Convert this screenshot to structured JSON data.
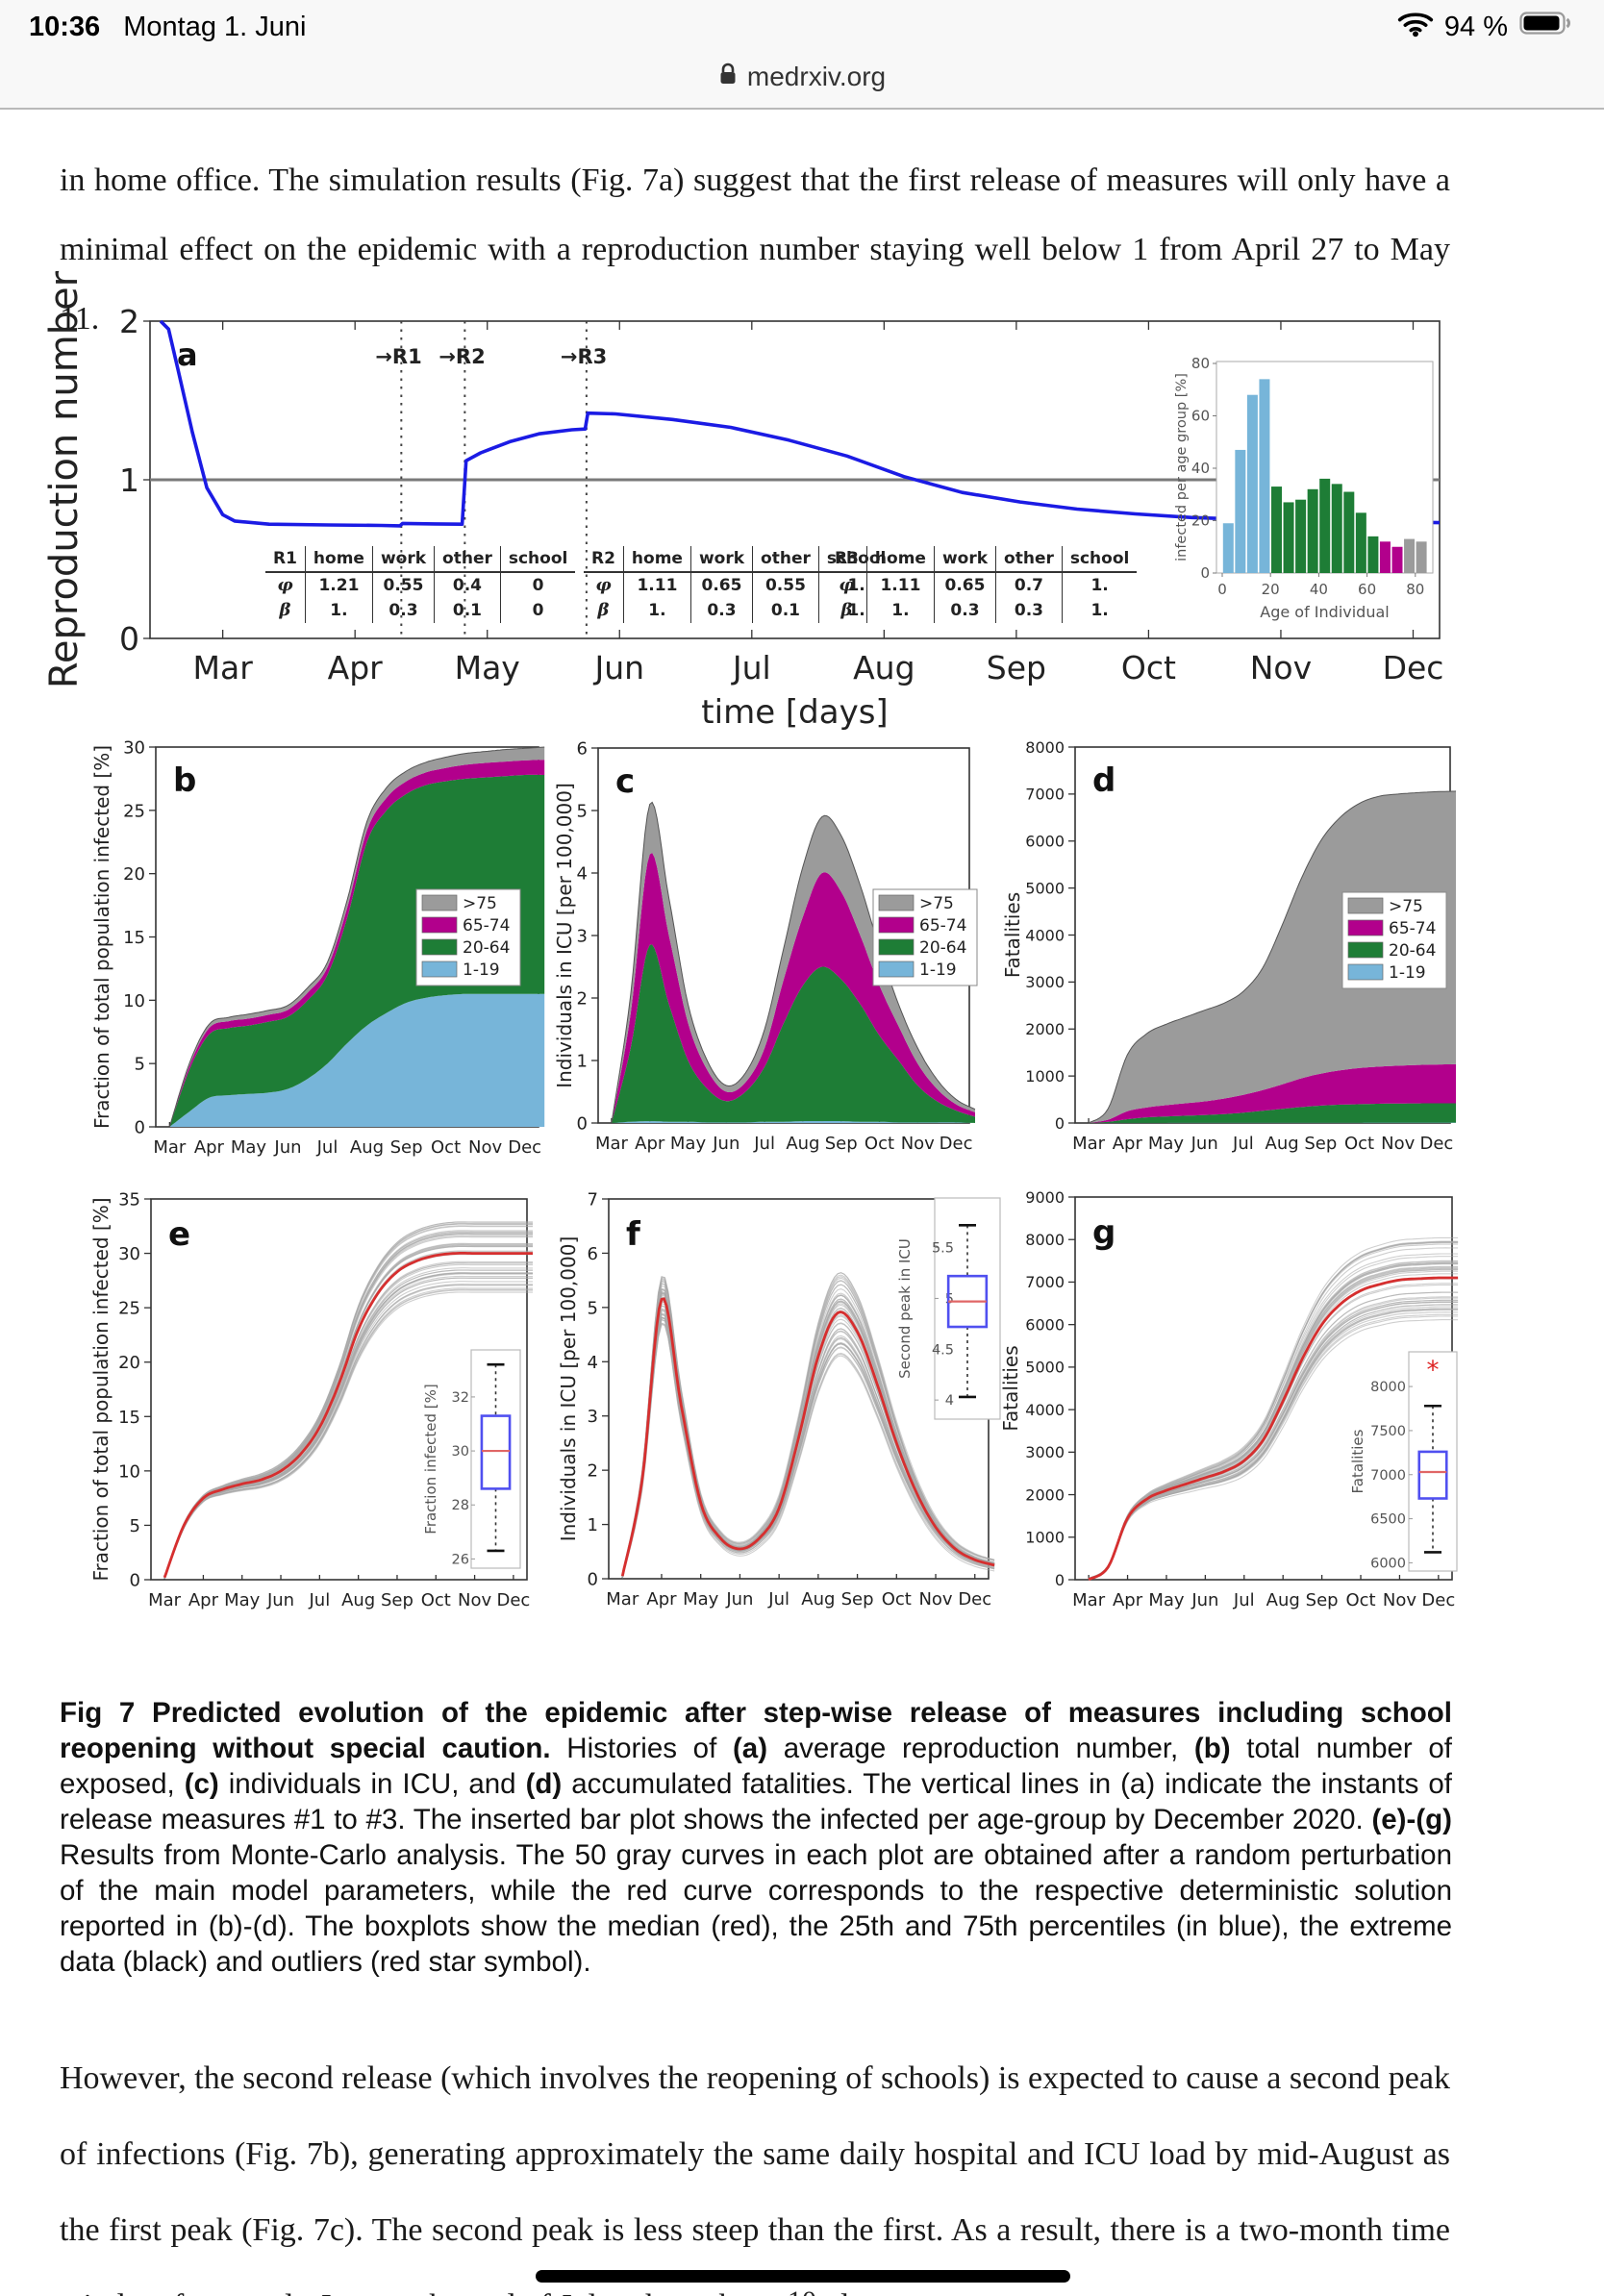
{
  "status_bar": {
    "time": "10:36",
    "date": "Montag 1. Juni",
    "battery_percent": "94 %"
  },
  "url_bar": {
    "domain": "medrxiv.org"
  },
  "paragraph_top": "in home office. The simulation results (Fig. 7a) suggest that the first release of measures will only have a minimal effect on the epidemic with a reproduction number staying well below 1 from April 27 to May 11.",
  "paragraph_bottom": "However, the second release (which involves the reopening of schools) is expected to cause a second peak of infections (Fig. 7b), generating approximately the same daily hospital and ICU load by mid-August as the first peak (Fig. 7c). The second peak is less steep than the first. As a result, there is a two-month time window from early June to the end of July where the second",
  "page_number": "10",
  "caption": {
    "runs": [
      {
        "bold": true,
        "text": "Fig 7 Predicted evolution of the epidemic after step-wise release of measures including school reopening without special caution."
      },
      {
        "bold": false,
        "text": " Histories of "
      },
      {
        "bold": true,
        "text": "(a)"
      },
      {
        "bold": false,
        "text": " average reproduction number, "
      },
      {
        "bold": true,
        "text": "(b)"
      },
      {
        "bold": false,
        "text": " total number of exposed, "
      },
      {
        "bold": true,
        "text": "(c)"
      },
      {
        "bold": false,
        "text": " individuals in ICU, and "
      },
      {
        "bold": true,
        "text": "(d)"
      },
      {
        "bold": false,
        "text": " accumulated fatalities. The vertical lines in (a) indicate the instants of release measures #1 to #3. The inserted bar plot shows the infected per age-group by December 2020. "
      },
      {
        "bold": true,
        "text": "(e)-(g)"
      },
      {
        "bold": false,
        "text": " Results from Monte-Carlo analysis. The 50 gray curves in each plot are obtained after a random perturbation of the main model parameters, while the red curve corresponds to the respective deterministic solution reported in (b)-(d). The boxplots show the median (red), the 25th and 75th percentiles (in blue), the extreme data (black) and outliers (red star symbol)."
      }
    ]
  },
  "colors": {
    "groups": {
      "1-19": "#77b5d9",
      "20-64": "#1e7d36",
      "65-74": "#b2008c",
      ">75": "#9b9b9b"
    },
    "curve_blue": "#1b1be4",
    "mc_red": "#d62f2f",
    "mc_gray": "#a8a8a8",
    "box_blue": "#5050f0",
    "median_red": "#e06666",
    "outlier_red": "#dd2222",
    "hline_gray": "#7a7a7a",
    "axis": "#333333"
  },
  "months": [
    "Mar",
    "Apr",
    "May",
    "Jun",
    "Jul",
    "Aug",
    "Sep",
    "Oct",
    "Nov",
    "Dec"
  ],
  "x_half_months": [
    0,
    0.5,
    1,
    1.5,
    2,
    2.5,
    3,
    3.5,
    4,
    4.5,
    5,
    5.5,
    6,
    6.5,
    7,
    7.5,
    8,
    8.5,
    9,
    9.5
  ],
  "chart_data": [
    {
      "id": "a",
      "type": "line",
      "panel_label": "a",
      "ylabel": "Reproduction number",
      "xlabel": "time [days]",
      "ylim": [
        0,
        2
      ],
      "yticks": [
        0,
        1,
        2
      ],
      "hline": 1,
      "line": {
        "x": [
          -0.47,
          -0.41,
          -0.34,
          -0.23,
          -0.12,
          0.0,
          0.09,
          0.35,
          0.8,
          1.2,
          1.34,
          1.36,
          1.6,
          1.81,
          1.84,
          1.95,
          2.17,
          2.39,
          2.64,
          2.74,
          2.76,
          2.97,
          3.4,
          3.84,
          4.28,
          4.72,
          5.15,
          5.59,
          6.03,
          6.46,
          6.9,
          7.33,
          7.77,
          8.21,
          8.65,
          9.2
        ],
        "y": [
          2.0,
          1.95,
          1.7,
          1.3,
          0.95,
          0.78,
          0.74,
          0.72,
          0.715,
          0.712,
          0.71,
          0.725,
          0.722,
          0.72,
          1.12,
          1.17,
          1.24,
          1.29,
          1.315,
          1.32,
          1.42,
          1.415,
          1.38,
          1.33,
          1.25,
          1.15,
          1.02,
          0.92,
          0.86,
          0.815,
          0.785,
          0.762,
          0.75,
          0.742,
          0.736,
          0.73
        ]
      },
      "vlines": [
        {
          "x": 1.35,
          "label": "R1"
        },
        {
          "x": 1.83,
          "label": "R2"
        },
        {
          "x": 2.75,
          "label": "R3"
        }
      ],
      "release_tables": [
        {
          "name": "R1",
          "columns": [
            "home",
            "work",
            "other",
            "school"
          ],
          "rows": [
            {
              "label": "φ",
              "values": [
                "1.21",
                "0.55",
                "0.4",
                "0"
              ]
            },
            {
              "label": "β",
              "values": [
                "1.",
                "0.3",
                "0.1",
                "0"
              ]
            }
          ]
        },
        {
          "name": "R2",
          "columns": [
            "home",
            "work",
            "other",
            "school"
          ],
          "rows": [
            {
              "label": "φ",
              "values": [
                "1.11",
                "0.65",
                "0.55",
                "1."
              ]
            },
            {
              "label": "β",
              "values": [
                "1.",
                "0.3",
                "0.1",
                "1."
              ]
            }
          ]
        },
        {
          "name": "R3",
          "columns": [
            "home",
            "work",
            "other",
            "school"
          ],
          "rows": [
            {
              "label": "φ",
              "values": [
                "1.11",
                "0.65",
                "0.7",
                "1."
              ]
            },
            {
              "label": "β",
              "values": [
                "1.",
                "0.3",
                "0.3",
                "1."
              ]
            }
          ]
        }
      ],
      "inset_bar": {
        "ylabel": "infected per age group [%]",
        "xlabel": "Age of Individual",
        "ylim": [
          0,
          80
        ],
        "yticks": [
          0,
          20,
          40,
          60,
          80
        ],
        "xticks": [
          0,
          20,
          40,
          60,
          80
        ],
        "bin_width": 5,
        "values": [
          19,
          47,
          68,
          74,
          33,
          27,
          28,
          32,
          36,
          34,
          31,
          23,
          14,
          12,
          10,
          13,
          12
        ],
        "groups": [
          "1-19",
          "1-19",
          "1-19",
          "1-19",
          "20-64",
          "20-64",
          "20-64",
          "20-64",
          "20-64",
          "20-64",
          "20-64",
          "20-64",
          "20-64",
          "65-74",
          "65-74",
          ">75",
          ">75"
        ]
      }
    },
    {
      "id": "b",
      "type": "area",
      "panel_label": "b",
      "ylabel": "Fraction of total population infected [%]",
      "ylim": [
        0,
        30
      ],
      "yticks": [
        0,
        5,
        10,
        15,
        20,
        25,
        30
      ],
      "legend": [
        ">75",
        "65-74",
        "20-64",
        "1-19"
      ],
      "series": [
        {
          "name": "1-19",
          "top": [
            0,
            1.2,
            2.3,
            2.5,
            2.6,
            2.7,
            3.0,
            3.8,
            5.0,
            6.6,
            8.0,
            9.0,
            9.8,
            10.2,
            10.4,
            10.5,
            10.5,
            10.5,
            10.5,
            10.5
          ]
        },
        {
          "name": "20-64",
          "top": [
            0,
            4.5,
            7.3,
            7.8,
            8.0,
            8.3,
            8.7,
            10.0,
            12.0,
            16.5,
            22.5,
            25.0,
            26.3,
            27.0,
            27.3,
            27.5,
            27.6,
            27.7,
            27.8,
            27.8
          ]
        },
        {
          "name": "65-74",
          "top": [
            0,
            4.8,
            7.8,
            8.35,
            8.55,
            8.85,
            9.25,
            10.6,
            12.6,
            17.3,
            23.4,
            26.0,
            27.3,
            28.0,
            28.35,
            28.6,
            28.75,
            28.85,
            28.95,
            29.0
          ]
        },
        {
          "name": ">75",
          "top": [
            0,
            5.0,
            8.1,
            8.65,
            8.9,
            9.2,
            9.6,
            11.0,
            13.0,
            17.9,
            24.1,
            26.8,
            28.1,
            28.8,
            29.2,
            29.5,
            29.65,
            29.8,
            29.9,
            30.0
          ]
        }
      ]
    },
    {
      "id": "c",
      "type": "area",
      "panel_label": "c",
      "ylabel": "Individuals in ICU [per 100,000]",
      "ylim": [
        0,
        6
      ],
      "yticks": [
        0,
        1,
        2,
        3,
        4,
        5,
        6
      ],
      "legend": [
        ">75",
        "65-74",
        "20-64",
        "1-19"
      ],
      "series": [
        {
          "name": "1-19",
          "top": [
            0,
            0.02,
            0.03,
            0.02,
            0.02,
            0.01,
            0.01,
            0.01,
            0.02,
            0.02,
            0.03,
            0.03,
            0.03,
            0.02,
            0.02,
            0.01,
            0.01,
            0.01,
            0.01,
            0.0
          ]
        },
        {
          "name": "20-64",
          "top": [
            0,
            1.2,
            2.85,
            1.9,
            1.0,
            0.55,
            0.35,
            0.5,
            0.9,
            1.6,
            2.2,
            2.5,
            2.3,
            1.9,
            1.4,
            1.0,
            0.6,
            0.35,
            0.2,
            0.1
          ]
        },
        {
          "name": "65-74",
          "top": [
            0,
            1.75,
            4.3,
            3.0,
            1.6,
            0.85,
            0.5,
            0.65,
            1.2,
            2.3,
            3.3,
            4.0,
            3.7,
            3.0,
            2.2,
            1.55,
            0.95,
            0.55,
            0.3,
            0.17
          ]
        },
        {
          "name": ">75",
          "top": [
            0,
            2.05,
            5.1,
            3.6,
            1.9,
            1.0,
            0.6,
            0.8,
            1.5,
            2.8,
            4.1,
            4.9,
            4.6,
            3.8,
            2.8,
            1.9,
            1.2,
            0.7,
            0.38,
            0.22
          ]
        }
      ]
    },
    {
      "id": "d",
      "type": "area",
      "panel_label": "d",
      "ylabel": "Fatalities",
      "ylim": [
        0,
        8000
      ],
      "yticks": [
        0,
        1000,
        2000,
        3000,
        4000,
        5000,
        6000,
        7000,
        8000
      ],
      "legend": [
        ">75",
        "65-74",
        "20-64",
        "1-19"
      ],
      "series": [
        {
          "name": "1-19",
          "top": [
            0,
            1,
            2,
            3,
            3,
            4,
            4,
            4,
            5,
            5,
            6,
            6,
            7,
            7,
            7,
            8,
            8,
            8,
            8,
            8
          ]
        },
        {
          "name": "20-64",
          "top": [
            0,
            25,
            80,
            120,
            140,
            155,
            170,
            190,
            220,
            260,
            300,
            340,
            370,
            390,
            400,
            410,
            415,
            418,
            420,
            420
          ]
        },
        {
          "name": "65-74",
          "top": [
            0,
            70,
            250,
            330,
            380,
            420,
            460,
            520,
            600,
            700,
            820,
            950,
            1050,
            1120,
            1170,
            1200,
            1220,
            1235,
            1245,
            1250
          ]
        },
        {
          "name": ">75",
          "top": [
            0,
            300,
            1450,
            1900,
            2100,
            2250,
            2400,
            2550,
            2800,
            3300,
            4200,
            5200,
            6000,
            6500,
            6800,
            6950,
            7000,
            7030,
            7050,
            7060
          ]
        }
      ]
    },
    {
      "id": "e",
      "type": "montecarlo",
      "panel_label": "e",
      "ylabel": "Fraction of total population infected [%]",
      "ylim": [
        0,
        35
      ],
      "yticks": [
        0,
        5,
        10,
        15,
        20,
        25,
        30,
        35
      ],
      "n_gray_curves": 50,
      "spread": 0.11,
      "red": [
        0.2,
        5.0,
        7.5,
        8.3,
        8.8,
        9.2,
        10.0,
        11.5,
        14.0,
        18.0,
        23.0,
        26.3,
        28.3,
        29.3,
        29.8,
        30.0,
        30.0,
        30.0,
        30.0,
        30.0
      ],
      "inset_box": {
        "ylabel": "Fraction infected [%]",
        "ylim": [
          25.8,
          33.6
        ],
        "yticks": [
          26,
          28,
          30,
          32
        ],
        "box": [
          28.6,
          31.3
        ],
        "median": 30,
        "whiskers": [
          26.3,
          33.2
        ],
        "outliers": []
      }
    },
    {
      "id": "f",
      "type": "montecarlo",
      "panel_label": "f",
      "ylabel": "Individuals in ICU [per 100,000]",
      "ylim": [
        0,
        7
      ],
      "yticks": [
        0,
        1,
        2,
        3,
        4,
        5,
        6,
        7
      ],
      "n_gray_curves": 50,
      "spread": 0.16,
      "red": [
        0.05,
        1.8,
        5.15,
        3.2,
        1.4,
        0.75,
        0.55,
        0.75,
        1.3,
        2.6,
        4.1,
        4.9,
        4.55,
        3.6,
        2.5,
        1.6,
        0.95,
        0.55,
        0.35,
        0.25
      ],
      "inset_box": {
        "ylabel": "Second peak in ICU",
        "ylim": [
          3.85,
          5.95
        ],
        "yticks": [
          4,
          4.5,
          5,
          5.5
        ],
        "box": [
          4.72,
          5.22
        ],
        "median": 4.97,
        "whiskers": [
          4.03,
          5.72
        ],
        "outliers": []
      }
    },
    {
      "id": "g",
      "type": "montecarlo",
      "panel_label": "g",
      "ylabel": "Fatalities",
      "ylim": [
        0,
        9000
      ],
      "yticks": [
        0,
        1000,
        2000,
        3000,
        4000,
        5000,
        6000,
        7000,
        8000,
        9000
      ],
      "n_gray_curves": 50,
      "spread": 0.13,
      "red": [
        5,
        300,
        1450,
        1900,
        2100,
        2250,
        2400,
        2550,
        2800,
        3300,
        4200,
        5200,
        6000,
        6500,
        6800,
        6950,
        7050,
        7080,
        7100,
        7100
      ],
      "inset_box": {
        "ylabel": "Fatalities",
        "ylim": [
          5950,
          8350
        ],
        "yticks": [
          6000,
          6500,
          7000,
          7500,
          8000
        ],
        "box": [
          6730,
          7260
        ],
        "median": 7030,
        "whiskers": [
          6120,
          7780
        ],
        "outliers": [
          8170
        ]
      }
    }
  ]
}
